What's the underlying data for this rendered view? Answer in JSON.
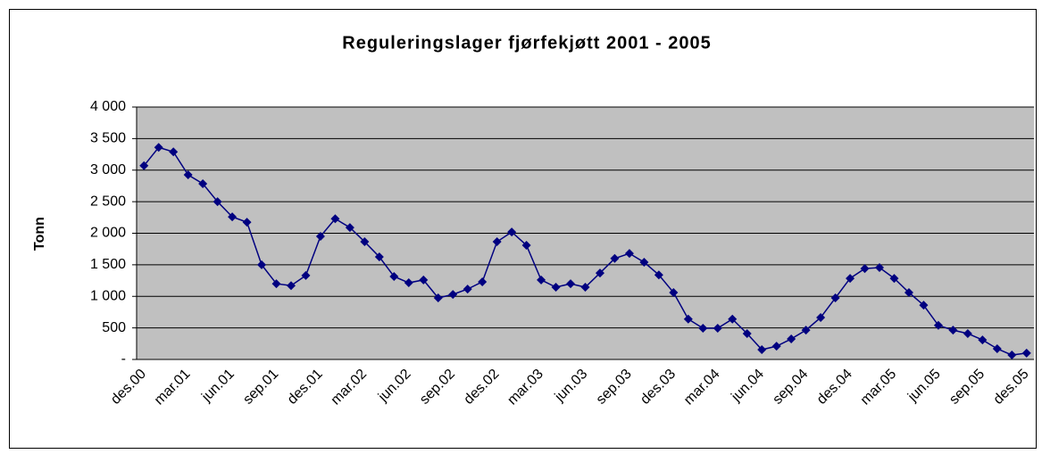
{
  "chart_data": {
    "type": "line",
    "title": "Reguleringslager fjørfekjøtt 2001 - 2005",
    "y_label": "Tonn",
    "categories": [
      "des.00",
      null,
      null,
      "mar.01",
      null,
      null,
      "jun.01",
      null,
      null,
      "sep.01",
      null,
      null,
      "des.01",
      null,
      null,
      "mar.02",
      null,
      null,
      "jun.02",
      null,
      null,
      "sep.02",
      null,
      null,
      "des.02",
      null,
      null,
      "mar.03",
      null,
      null,
      "jun.03",
      null,
      null,
      "sep.03",
      null,
      null,
      "des.03",
      null,
      null,
      "mar.04",
      null,
      null,
      "jun.04",
      null,
      null,
      "sep.04",
      null,
      null,
      "des.04",
      null,
      null,
      "mar.05",
      null,
      null,
      "jun.05",
      null,
      null,
      "sep.05",
      null,
      null,
      "des.05"
    ],
    "values": [
      3070,
      3360,
      3290,
      2925,
      2785,
      2500,
      2260,
      2175,
      1500,
      1200,
      1170,
      1330,
      1950,
      2230,
      2090,
      1865,
      1625,
      1315,
      1215,
      1260,
      975,
      1030,
      1115,
      1230,
      1865,
      2020,
      1810,
      1260,
      1145,
      1200,
      1145,
      1370,
      1600,
      1680,
      1540,
      1340,
      1060,
      640,
      495,
      495,
      640,
      410,
      155,
      210,
      325,
      465,
      665,
      975,
      1285,
      1440,
      1455,
      1285,
      1060,
      860,
      540,
      465,
      410,
      310,
      170,
      70,
      100
    ],
    "color": "#000080",
    "ylim": [
      0,
      4000
    ],
    "yticks": [
      {
        "value": 0,
        "label": "-"
      },
      500,
      {
        "value": 1000,
        "label": "1 000"
      },
      {
        "value": 1500,
        "label": "1 500"
      },
      {
        "value": 2000,
        "label": "2 000"
      },
      {
        "value": 2500,
        "label": "2 500"
      },
      {
        "value": 3000,
        "label": "3 000"
      },
      {
        "value": 3500,
        "label": "3 500"
      },
      {
        "value": 4000,
        "label": "4 000"
      }
    ],
    "grid": true,
    "plot_background": "#c0c0c0"
  }
}
